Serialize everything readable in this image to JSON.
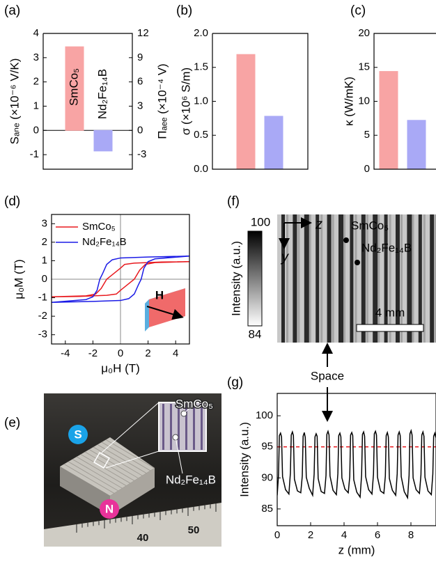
{
  "chart_data": [
    {
      "type": "bar",
      "panel_label": "(a)",
      "categories": [
        "SmCo₅",
        "Nd₂Fe₁₄B"
      ],
      "values": [
        3.45,
        -0.85
      ],
      "colors": [
        "#f8a4a4",
        "#a9a9f6"
      ],
      "ylabel": "Sₐₙₑ (×10⁻⁶ V/K)",
      "ylim": [
        -1.6,
        4
      ],
      "yticks": [
        -1,
        0,
        1,
        2,
        3,
        4
      ],
      "y2label": "Πₐₑₑ (×10⁻⁴ V)",
      "y2lim": [
        -4.8,
        12
      ],
      "y2ticks": [
        -3,
        0,
        3,
        6,
        9,
        12
      ]
    },
    {
      "type": "bar",
      "panel_label": "(b)",
      "values": [
        1.69,
        0.78
      ],
      "colors": [
        "#f8a4a4",
        "#a9a9f6"
      ],
      "ylabel": "σ (×10⁶ S/m)",
      "ylim": [
        0,
        2
      ],
      "yticks": [
        {
          "value": 0,
          "label": "0.0"
        },
        0.5,
        {
          "value": 1,
          "label": "1.0"
        },
        1.5,
        {
          "value": 2,
          "label": "2.0"
        }
      ]
    },
    {
      "type": "bar",
      "panel_label": "(c)",
      "values": [
        14.4,
        7.2
      ],
      "colors": [
        "#f8a4a4",
        "#a9a9f6"
      ],
      "ylabel": "κ (W/mK)",
      "ylim": [
        0,
        20
      ],
      "yticks": [
        0,
        5,
        10,
        15,
        20
      ]
    },
    {
      "type": "line",
      "panel_label": "(d)",
      "xlabel": "μ₀H (T)",
      "ylabel": "μ₀M (T)",
      "xlim": [
        -5,
        5
      ],
      "ylim": [
        -3.5,
        3.5
      ],
      "xticks": [
        -4,
        -2,
        0,
        2,
        4
      ],
      "yticks": [
        -3,
        -2,
        -1,
        0,
        1,
        2,
        3
      ],
      "zero_lines": true,
      "legend": "upper left",
      "inset_label": "H",
      "series": [
        {
          "name": "SmCo₅",
          "color": "#e8191e",
          "x": [
            5,
            3,
            2,
            1,
            0.3,
            0,
            -0.5,
            -1,
            -1.4,
            -1.8,
            -2.5,
            -5,
            -3,
            -2,
            -1,
            -0.3,
            0,
            0.5,
            1,
            1.4,
            1.8,
            2.5,
            5
          ],
          "values": [
            0.95,
            0.93,
            0.9,
            0.87,
            0.8,
            0.6,
            0.3,
            0,
            -0.5,
            -0.8,
            -0.9,
            -0.95,
            -0.93,
            -0.9,
            -0.87,
            -0.8,
            -0.6,
            -0.3,
            0,
            0.5,
            0.8,
            0.9,
            0.95
          ]
        },
        {
          "name": "Nd₂Fe₁₄B",
          "color": "#1a1ae6",
          "x": [
            5,
            2,
            0,
            -0.6,
            -1,
            -1.3,
            -1.5,
            -1.7,
            -2,
            -2.5,
            -5,
            -2,
            0,
            0.6,
            1,
            1.3,
            1.5,
            1.7,
            2,
            2.5,
            5
          ],
          "values": [
            1.25,
            1.2,
            1.15,
            1.05,
            0.8,
            0.3,
            0,
            -0.6,
            -0.95,
            -1.1,
            -1.25,
            -1.2,
            -1.15,
            -1.05,
            -0.8,
            -0.3,
            0,
            0.6,
            0.95,
            1.1,
            1.25
          ]
        }
      ]
    },
    {
      "type": "image",
      "panel_label": "(e)",
      "labels": [
        "S",
        "N",
        "SmCo₅",
        "Nd₂Fe₁₄B",
        "40",
        "50"
      ]
    },
    {
      "type": "image",
      "panel_label": "(f)",
      "labels": [
        "z",
        "y",
        "SmCo₅",
        "Nd₂Fe₁₄B",
        "4 mm"
      ],
      "colorbar": {
        "label": "Intensity (a.u.)",
        "lim": [
          84,
          100
        ]
      }
    },
    {
      "type": "line",
      "panel_label": "(g)",
      "xlabel": "z (mm)",
      "ylabel": "Intensity (a.u.)",
      "xlim": [
        0,
        9.5
      ],
      "ylim": [
        82.3,
        103.6
      ],
      "xticks": [
        0,
        2,
        4,
        6,
        8
      ],
      "yticks": [
        85,
        90,
        95,
        100
      ],
      "hline": {
        "value": 95,
        "color": "#e8191e"
      },
      "series": [
        {
          "color": "#000000",
          "x": [
            0,
            0.08,
            0.13,
            0.2,
            0.26,
            0.32,
            0.5,
            0.7,
            0.79,
            0.84,
            0.91,
            0.97,
            1.03,
            1.21,
            1.41,
            1.5,
            1.55,
            1.62,
            1.68,
            1.74,
            1.92,
            2.12,
            2.21,
            2.26,
            2.33,
            2.39,
            2.45,
            2.63,
            2.83,
            2.92,
            2.97,
            3.04,
            3.1,
            3.16,
            3.34,
            3.54,
            3.63,
            3.68,
            3.75,
            3.81,
            3.87,
            4.05,
            4.25,
            4.34,
            4.39,
            4.46,
            4.52,
            4.58,
            4.76,
            4.96,
            5.05,
            5.1,
            5.17,
            5.23,
            5.29,
            5.47,
            5.67,
            5.76,
            5.81,
            5.88,
            5.94,
            6,
            6.18,
            6.38,
            6.47,
            6.52,
            6.59,
            6.65,
            6.71,
            6.89,
            7.09,
            7.18,
            7.23,
            7.3,
            7.36,
            7.42,
            7.6,
            7.8,
            7.89,
            7.94,
            8.01,
            8.07,
            8.13,
            8.31,
            8.51,
            8.6,
            8.65,
            8.72,
            8.78,
            8.84,
            9.02,
            9.22,
            9.31,
            9.36,
            9.43,
            9.49
          ],
          "values": [
            87.2,
            90.5,
            96.8,
            97.2,
            96.6,
            90.2,
            88.1,
            87.4,
            90.8,
            96.9,
            97.4,
            96.8,
            89.8,
            87.9,
            87.6,
            90.3,
            96.7,
            97.3,
            96.5,
            90.1,
            88.3,
            87.2,
            90.6,
            96.6,
            97.1,
            96.7,
            89.9,
            87.8,
            87.5,
            90.4,
            97.0,
            97.5,
            96.9,
            90.3,
            88.0,
            87.3,
            90.7,
            96.8,
            97.2,
            96.6,
            90.0,
            88.2,
            87.6,
            90.2,
            96.9,
            97.3,
            96.8,
            89.7,
            87.7,
            86.9,
            90.5,
            97.0,
            97.4,
            96.7,
            90.2,
            88.1,
            87.4,
            90.6,
            97.1,
            97.5,
            96.9,
            90.1,
            87.9,
            87.5,
            90.3,
            96.8,
            97.3,
            96.6,
            89.9,
            88.0,
            87.2,
            90.7,
            96.9,
            97.4,
            96.8,
            90.2,
            87.8,
            86.8,
            90.4,
            97.1,
            97.6,
            96.9,
            90.0,
            88.1,
            87.5,
            90.5,
            96.9,
            97.4,
            96.7,
            90.1,
            87.9,
            87.3,
            90.6,
            96.7,
            97.2,
            96.5
          ]
        }
      ]
    }
  ],
  "annotation": "Space"
}
